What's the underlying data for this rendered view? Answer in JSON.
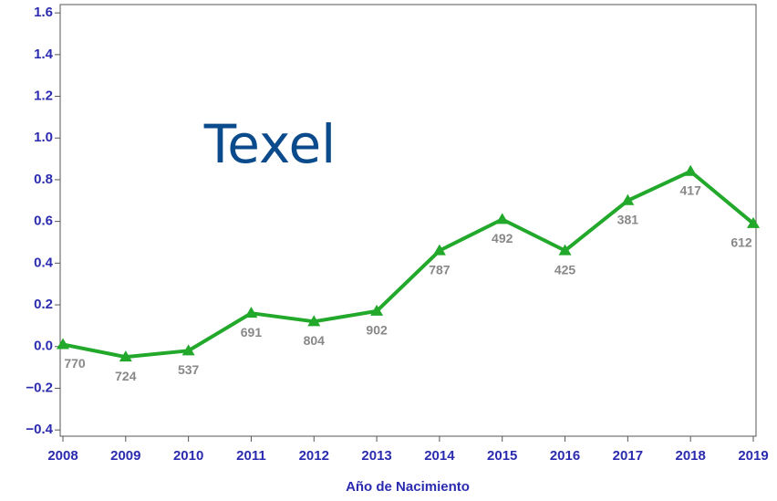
{
  "chart_data": {
    "type": "line",
    "annotation": "Texel",
    "xlabel": "Año de Nacimiento",
    "x": [
      2008,
      2009,
      2010,
      2011,
      2012,
      2013,
      2014,
      2015,
      2016,
      2017,
      2018,
      2019
    ],
    "series": [
      {
        "name": "Texel",
        "color": "#22a82a",
        "values": [
          0.01,
          -0.05,
          -0.02,
          0.16,
          0.12,
          0.17,
          0.46,
          0.61,
          0.46,
          0.7,
          0.84,
          0.59
        ]
      }
    ],
    "point_labels": [
      770,
      724,
      537,
      691,
      804,
      902,
      787,
      492,
      425,
      381,
      417,
      612
    ],
    "xlim": [
      2008,
      2019
    ],
    "xticks": [
      2008,
      2009,
      2010,
      2011,
      2012,
      2013,
      2014,
      2015,
      2016,
      2017,
      2018,
      2019
    ],
    "ylim": [
      -0.43,
      1.64
    ],
    "yticks": [
      {
        "value": -0.4,
        "label": "−0.4"
      },
      {
        "value": -0.2,
        "label": "−0.2"
      },
      {
        "value": 0,
        "label": "0.0"
      },
      0.2,
      0.4,
      0.6,
      0.8,
      {
        "value": 1,
        "label": "1.0"
      },
      1.2,
      1.4,
      1.6
    ]
  }
}
